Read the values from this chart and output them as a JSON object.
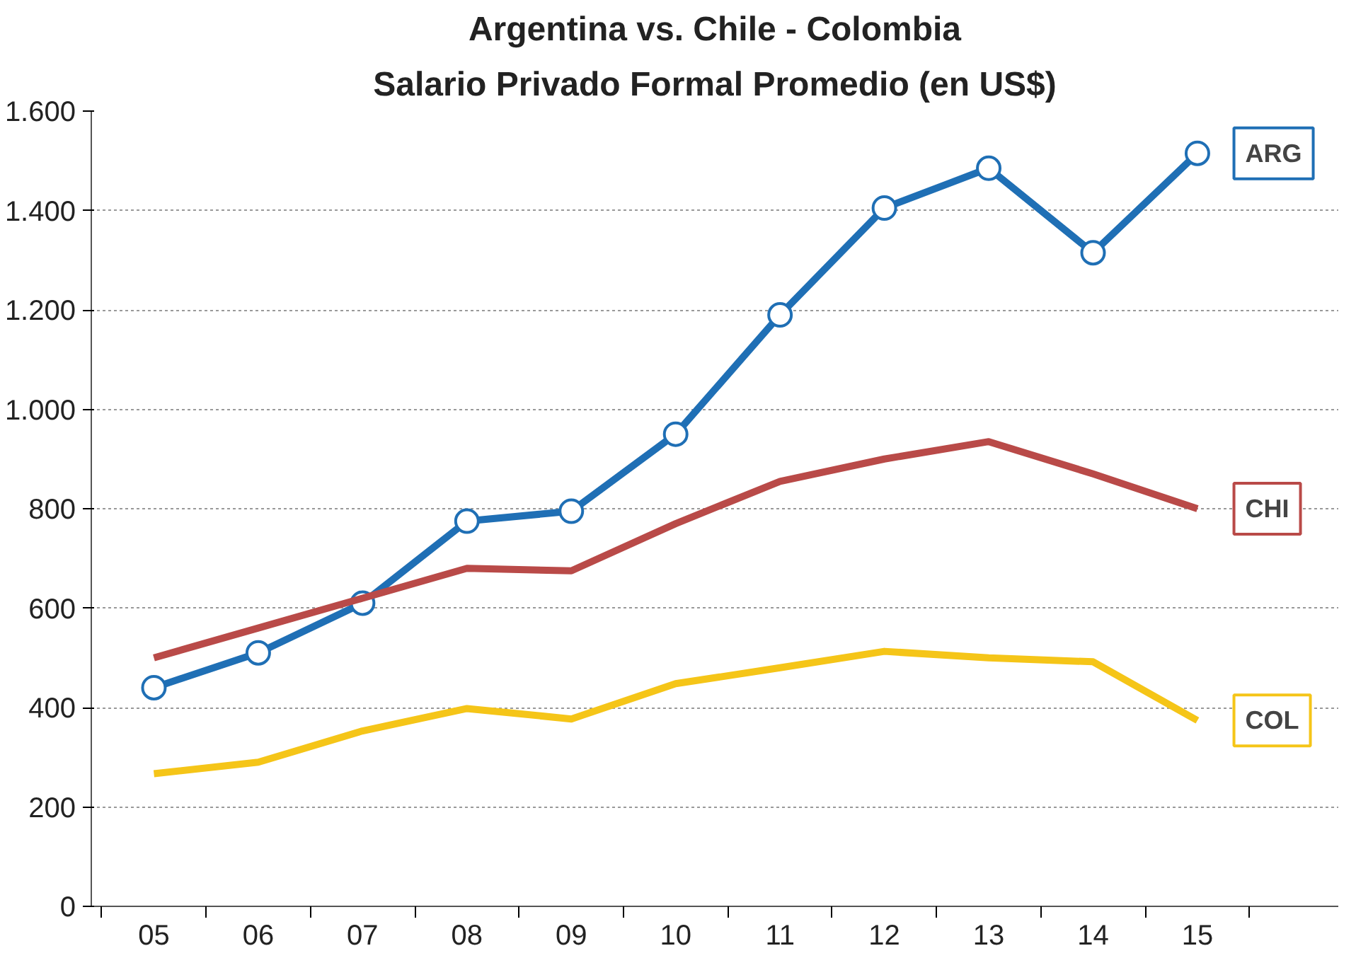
{
  "chart_data": {
    "type": "line",
    "title": "Argentina vs. Chile - Colombia",
    "subtitle": "Salario Privado Formal Promedio (en US$)",
    "categories": [
      "05",
      "06",
      "07",
      "08",
      "09",
      "10",
      "11",
      "12",
      "13",
      "14",
      "15"
    ],
    "series": [
      {
        "name": "ARG",
        "color": "#1f6fb5",
        "marker": "circle",
        "values": [
          440,
          510,
          610,
          775,
          795,
          950,
          1190,
          1405,
          1485,
          1315,
          1515
        ]
      },
      {
        "name": "CHI",
        "color": "#b94a48",
        "values": [
          500,
          560,
          620,
          680,
          675,
          770,
          855,
          900,
          935,
          870,
          800
        ]
      },
      {
        "name": "COL",
        "color": "#f5c518",
        "values": [
          267,
          290,
          353,
          398,
          377,
          448,
          480,
          513,
          500,
          492,
          374
        ]
      }
    ],
    "ylim": [
      0,
      1600
    ],
    "yticks": [
      0,
      200,
      400,
      600,
      800,
      {
        "value": 1000,
        "label": "1.000"
      },
      {
        "value": 1200,
        "label": "1.200"
      },
      {
        "value": 1400,
        "label": "1.400"
      },
      {
        "value": 1600,
        "label": "1.600"
      }
    ],
    "grid": "y",
    "line_style": "solid"
  }
}
